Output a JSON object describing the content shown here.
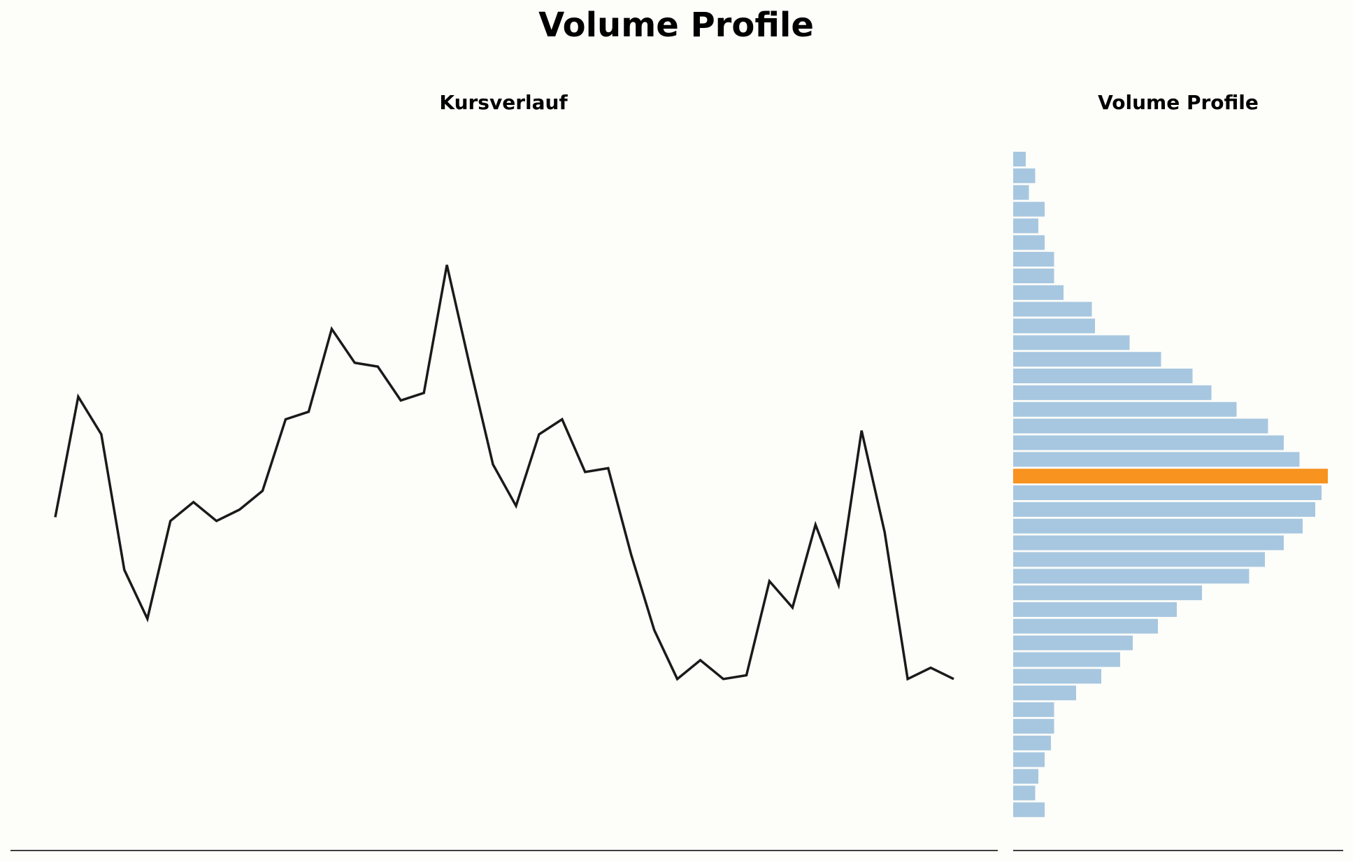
{
  "figure": {
    "title": "Volume Profile"
  },
  "chart_data": [
    {
      "type": "line",
      "title": "Kursverlauf",
      "xlabel": "",
      "ylabel": "",
      "axes_visible": false,
      "line_color": "#1a1a1a",
      "x": [
        0,
        1,
        2,
        3,
        4,
        5,
        6,
        7,
        8,
        9,
        10,
        11,
        12,
        13,
        14,
        15,
        16,
        17,
        18,
        19,
        20,
        21,
        22,
        23,
        24,
        25,
        26,
        27,
        28,
        29,
        30,
        31,
        32,
        33,
        34,
        35,
        36,
        37,
        38,
        39,
        40
      ],
      "values": [
        100.0,
        103.2,
        102.2,
        98.6,
        97.3,
        99.9,
        100.4,
        99.9,
        100.2,
        100.7,
        102.6,
        102.8,
        105.0,
        104.1,
        104.0,
        103.1,
        103.3,
        106.7,
        104.0,
        101.4,
        100.3,
        102.2,
        102.6,
        101.2,
        101.3,
        99.0,
        97.0,
        95.7,
        96.2,
        95.7,
        95.8,
        98.3,
        97.6,
        99.8,
        98.2,
        102.3,
        99.6,
        95.7,
        96.0,
        95.7,
        null
      ]
    },
    {
      "type": "bar",
      "orientation": "horizontal",
      "title": "Volume Profile",
      "axes_visible": false,
      "bar_color": "#a7c7e0",
      "poc_color": "#f7931e",
      "poc_index": 19,
      "xlim": [
        0,
        100
      ],
      "values": [
        4,
        7,
        5,
        10,
        8,
        10,
        13,
        13,
        16,
        25,
        26,
        37,
        47,
        57,
        63,
        71,
        81,
        86,
        91,
        100,
        98,
        96,
        92,
        86,
        80,
        75,
        60,
        52,
        46,
        38,
        34,
        28,
        20,
        13,
        13,
        12,
        10,
        8,
        7,
        10
      ]
    }
  ]
}
